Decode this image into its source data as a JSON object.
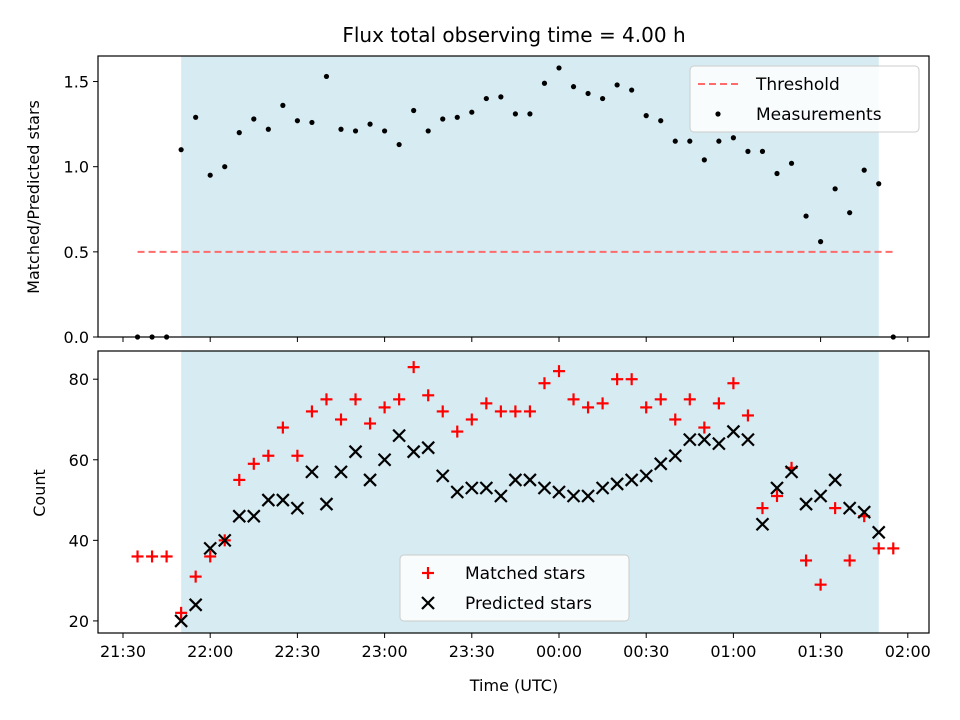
{
  "chart_data": [
    {
      "type": "scatter",
      "title": "Flux total observing time = 4.00 h",
      "xlabel": "",
      "ylabel": "Matched/Predicted stars",
      "ylim": [
        0,
        1.65
      ],
      "yticks": [
        "0.0",
        "0.5",
        "1.0",
        "1.5"
      ],
      "shaded_span": [
        "21:50",
        "01:50"
      ],
      "legend_position": "top-right",
      "threshold": {
        "name": "Threshold",
        "value": 0.5,
        "x_range": [
          "21:35",
          "01:55"
        ],
        "color": "#ff6b6b",
        "style": "dashed"
      },
      "series": [
        {
          "name": "Measurements",
          "marker": "dot",
          "color": "#000000",
          "x": [
            "21:35",
            "21:40",
            "21:45",
            "21:50",
            "21:55",
            "22:00",
            "22:05",
            "22:10",
            "22:15",
            "22:20",
            "22:25",
            "22:30",
            "22:35",
            "22:40",
            "22:45",
            "22:50",
            "22:55",
            "23:00",
            "23:05",
            "23:10",
            "23:15",
            "23:20",
            "23:25",
            "23:30",
            "23:35",
            "23:40",
            "23:45",
            "23:50",
            "23:55",
            "00:00",
            "00:05",
            "00:10",
            "00:15",
            "00:20",
            "00:25",
            "00:30",
            "00:35",
            "00:40",
            "00:45",
            "00:50",
            "00:55",
            "01:00",
            "01:05",
            "01:10",
            "01:15",
            "01:20",
            "01:25",
            "01:30",
            "01:35",
            "01:40",
            "01:45",
            "01:50",
            "01:55"
          ],
          "y": [
            0,
            0,
            0,
            1.1,
            1.29,
            0.95,
            1.0,
            1.2,
            1.28,
            1.22,
            1.36,
            1.27,
            1.26,
            1.53,
            1.22,
            1.21,
            1.25,
            1.21,
            1.13,
            1.33,
            1.21,
            1.28,
            1.29,
            1.32,
            1.4,
            1.41,
            1.31,
            1.31,
            1.49,
            1.58,
            1.47,
            1.43,
            1.4,
            1.48,
            1.45,
            1.3,
            1.27,
            1.15,
            1.15,
            1.04,
            1.15,
            1.17,
            1.09,
            1.09,
            0.96,
            1.02,
            0.71,
            0.56,
            0.87,
            0.73,
            0.98,
            0.9,
            0
          ]
        }
      ]
    },
    {
      "type": "scatter",
      "xlabel": "Time (UTC)",
      "ylabel": "Count",
      "ylim": [
        17,
        87
      ],
      "yticks": [
        "20",
        "40",
        "60",
        "80"
      ],
      "xticks": [
        "21:30",
        "22:00",
        "22:30",
        "23:00",
        "23:30",
        "00:00",
        "00:30",
        "01:00",
        "01:30",
        "02:00"
      ],
      "shaded_span": [
        "21:50",
        "01:50"
      ],
      "legend_position": "bottom-center",
      "series": [
        {
          "name": "Matched stars",
          "marker": "plus",
          "color": "#ff0000",
          "x": [
            "21:35",
            "21:40",
            "21:45",
            "21:50",
            "21:55",
            "22:00",
            "22:05",
            "22:10",
            "22:15",
            "22:20",
            "22:25",
            "22:30",
            "22:35",
            "22:40",
            "22:45",
            "22:50",
            "22:55",
            "23:00",
            "23:05",
            "23:10",
            "23:15",
            "23:20",
            "23:25",
            "23:30",
            "23:35",
            "23:40",
            "23:45",
            "23:50",
            "23:55",
            "00:00",
            "00:05",
            "00:10",
            "00:15",
            "00:20",
            "00:25",
            "00:30",
            "00:35",
            "00:40",
            "00:45",
            "00:50",
            "00:55",
            "01:00",
            "01:05",
            "01:10",
            "01:15",
            "01:20",
            "01:25",
            "01:30",
            "01:35",
            "01:40",
            "01:45",
            "01:50",
            "01:55"
          ],
          "y": [
            36,
            36,
            36,
            22,
            31,
            36,
            40,
            55,
            59,
            61,
            68,
            61,
            72,
            75,
            70,
            75,
            69,
            73,
            75,
            83,
            76,
            72,
            67,
            70,
            74,
            72,
            72,
            72,
            79,
            82,
            75,
            73,
            74,
            80,
            80,
            73,
            75,
            70,
            75,
            68,
            74,
            79,
            71,
            48,
            51,
            58,
            35,
            29,
            48,
            35,
            46,
            38,
            38
          ]
        },
        {
          "name": "Predicted stars",
          "marker": "x",
          "color": "#000000",
          "x": [
            "21:50",
            "21:55",
            "22:00",
            "22:05",
            "22:10",
            "22:15",
            "22:20",
            "22:25",
            "22:30",
            "22:35",
            "22:40",
            "22:45",
            "22:50",
            "22:55",
            "23:00",
            "23:05",
            "23:10",
            "23:15",
            "23:20",
            "23:25",
            "23:30",
            "23:35",
            "23:40",
            "23:45",
            "23:50",
            "23:55",
            "00:00",
            "00:05",
            "00:10",
            "00:15",
            "00:20",
            "00:25",
            "00:30",
            "00:35",
            "00:40",
            "00:45",
            "00:50",
            "00:55",
            "01:00",
            "01:05",
            "01:10",
            "01:15",
            "01:20",
            "01:25",
            "01:30",
            "01:35",
            "01:40",
            "01:45",
            "01:50"
          ],
          "y": [
            20,
            24,
            38,
            40,
            46,
            46,
            50,
            50,
            48,
            57,
            49,
            57,
            62,
            55,
            60,
            66,
            62,
            63,
            56,
            52,
            53,
            53,
            51,
            55,
            55,
            53,
            52,
            51,
            51,
            53,
            54,
            55,
            56,
            59,
            61,
            65,
            65,
            64,
            67,
            65,
            44,
            53,
            57,
            49,
            51,
            55,
            48,
            47,
            42
          ]
        }
      ]
    }
  ]
}
